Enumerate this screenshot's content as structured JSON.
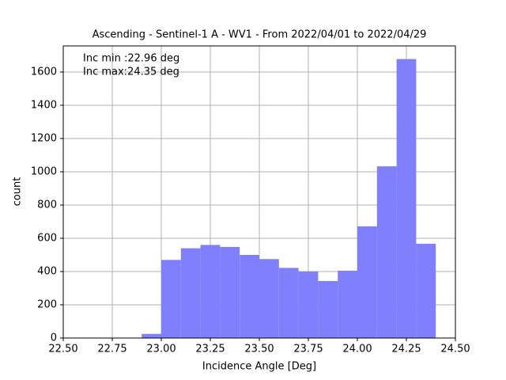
{
  "chart_data": {
    "type": "histogram",
    "title": "Ascending - Sentinel-1 A - WV1 - From 2022/04/01 to 2022/04/29",
    "x_label": "Incidence Angle [Deg]",
    "y_label": "count",
    "annotations": [
      "Inc min :22.96 deg",
      "Inc max:24.35 deg"
    ],
    "bins": [
      22.9,
      23.0,
      23.1,
      23.2,
      23.3,
      23.4,
      23.5,
      23.6,
      23.7,
      23.8,
      23.9,
      24.0,
      24.1,
      24.2,
      24.3,
      24.4
    ],
    "values": [
      25,
      470,
      540,
      560,
      548,
      500,
      475,
      422,
      400,
      343,
      405,
      672,
      1033,
      1678,
      567
    ],
    "color": "#8080ff",
    "xlim": [
      22.5,
      24.5
    ],
    "ylim": [
      0,
      1757
    ],
    "xticks": [
      {
        "value": 22.5,
        "label": "22.50"
      },
      {
        "value": 22.75,
        "label": "22.75"
      },
      {
        "value": 23.0,
        "label": "23.00"
      },
      {
        "value": 23.25,
        "label": "23.25"
      },
      {
        "value": 23.5,
        "label": "23.50"
      },
      {
        "value": 23.75,
        "label": "23.75"
      },
      {
        "value": 24.0,
        "label": "24.00"
      },
      {
        "value": 24.25,
        "label": "24.25"
      },
      {
        "value": 24.5,
        "label": "24.50"
      }
    ],
    "yticks": [
      0,
      200,
      400,
      600,
      800,
      1000,
      1200,
      1400,
      1600
    ],
    "grid": true
  }
}
